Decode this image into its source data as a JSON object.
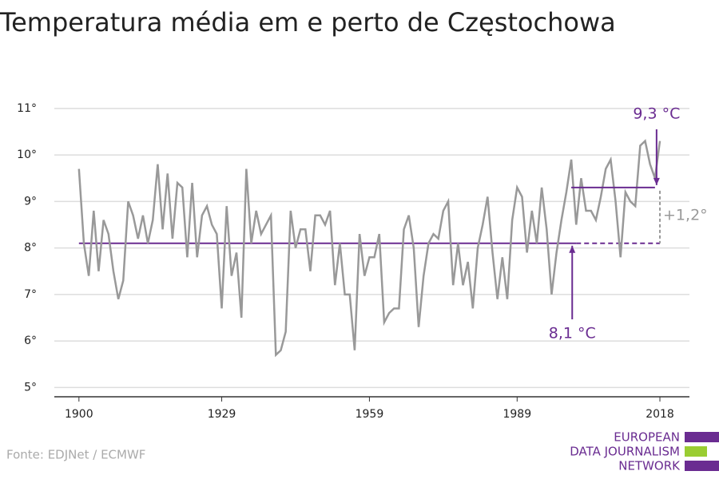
{
  "chart_data": {
    "type": "line",
    "title": "Temperatura média em e perto de Częstochowa",
    "x": [
      1900,
      1901,
      1902,
      1903,
      1904,
      1905,
      1906,
      1907,
      1908,
      1909,
      1910,
      1911,
      1912,
      1913,
      1914,
      1915,
      1916,
      1917,
      1918,
      1919,
      1920,
      1921,
      1922,
      1923,
      1924,
      1925,
      1926,
      1927,
      1928,
      1929,
      1930,
      1931,
      1932,
      1933,
      1934,
      1935,
      1936,
      1937,
      1938,
      1939,
      1940,
      1941,
      1942,
      1943,
      1944,
      1945,
      1946,
      1947,
      1948,
      1949,
      1950,
      1951,
      1952,
      1953,
      1954,
      1955,
      1956,
      1957,
      1958,
      1959,
      1960,
      1961,
      1962,
      1963,
      1964,
      1965,
      1966,
      1967,
      1968,
      1969,
      1970,
      1971,
      1972,
      1973,
      1974,
      1975,
      1976,
      1977,
      1978,
      1979,
      1980,
      1981,
      1982,
      1983,
      1984,
      1985,
      1986,
      1987,
      1988,
      1989,
      1990,
      1991,
      1992,
      1993,
      1994,
      1995,
      1996,
      1997,
      1998,
      1999,
      2000,
      2001,
      2002,
      2003,
      2004,
      2005,
      2006,
      2007,
      2008,
      2009,
      2010,
      2011,
      2012,
      2013,
      2014,
      2015,
      2016,
      2017,
      2018
    ],
    "series": [
      {
        "color": "#999999",
        "values": [
          9.7,
          8.1,
          7.4,
          8.8,
          7.5,
          8.6,
          8.3,
          7.5,
          6.9,
          7.3,
          9.0,
          8.7,
          8.2,
          8.7,
          8.1,
          8.6,
          9.8,
          8.4,
          9.6,
          8.2,
          9.4,
          9.3,
          7.8,
          9.4,
          7.8,
          8.7,
          8.9,
          8.5,
          8.3,
          6.7,
          8.9,
          7.4,
          7.9,
          6.5,
          9.7,
          8.1,
          8.8,
          8.3,
          8.5,
          8.7,
          5.7,
          5.8,
          6.2,
          8.8,
          8.0,
          8.4,
          8.4,
          7.5,
          8.7,
          8.7,
          8.5,
          8.8,
          7.2,
          8.1,
          7.0,
          7.0,
          5.8,
          8.3,
          7.4,
          7.8,
          7.8,
          8.3,
          6.4,
          6.6,
          6.7,
          6.7,
          8.4,
          8.7,
          8.0,
          6.3,
          7.4,
          8.1,
          8.3,
          8.2,
          8.8,
          9.0,
          7.2,
          8.1,
          7.2,
          7.7,
          6.7,
          8.0,
          8.5,
          9.1,
          7.9,
          6.9,
          7.8,
          6.9,
          8.6,
          9.3,
          9.1,
          7.9,
          8.8,
          8.1,
          9.3,
          8.4,
          7.0,
          7.9,
          8.6,
          9.2,
          9.9,
          8.5,
          9.5,
          8.8,
          8.8,
          8.6,
          9.1,
          9.7,
          9.9,
          9.0,
          7.8,
          9.2,
          9.0,
          8.9,
          10.2,
          10.3,
          9.8,
          9.5,
          10.3
        ]
      }
    ],
    "xlim": [
      1895,
      2024
    ],
    "ylim": [
      4.8,
      11.1
    ],
    "xticks": [
      1900,
      1929,
      1959,
      1989,
      2018
    ],
    "yticks": [
      {
        "value": 5,
        "label": "5°"
      },
      {
        "value": 6,
        "label": "6°"
      },
      {
        "value": 7,
        "label": "7°"
      },
      {
        "value": 8,
        "label": "8°"
      },
      {
        "value": 9,
        "label": "9°"
      },
      {
        "value": 10,
        "label": "10°"
      },
      {
        "value": 11,
        "label": "11°"
      }
    ],
    "grid": true,
    "annotations": [
      {
        "label": "8,1 °C",
        "value": 8.1,
        "from": 1900,
        "solid_to": 2001,
        "to": 2018,
        "color": "#6a2c91"
      },
      {
        "label": "9,3 °C",
        "value": 9.3,
        "from": 2000,
        "to": 2017,
        "color": "#6a2c91"
      }
    ],
    "difference_label": "+1,2°",
    "source": "Fonte: EDJNet / ECMWF",
    "logo": [
      "EUROPEAN",
      "DATA JOURNALISM",
      "NETWORK"
    ]
  }
}
